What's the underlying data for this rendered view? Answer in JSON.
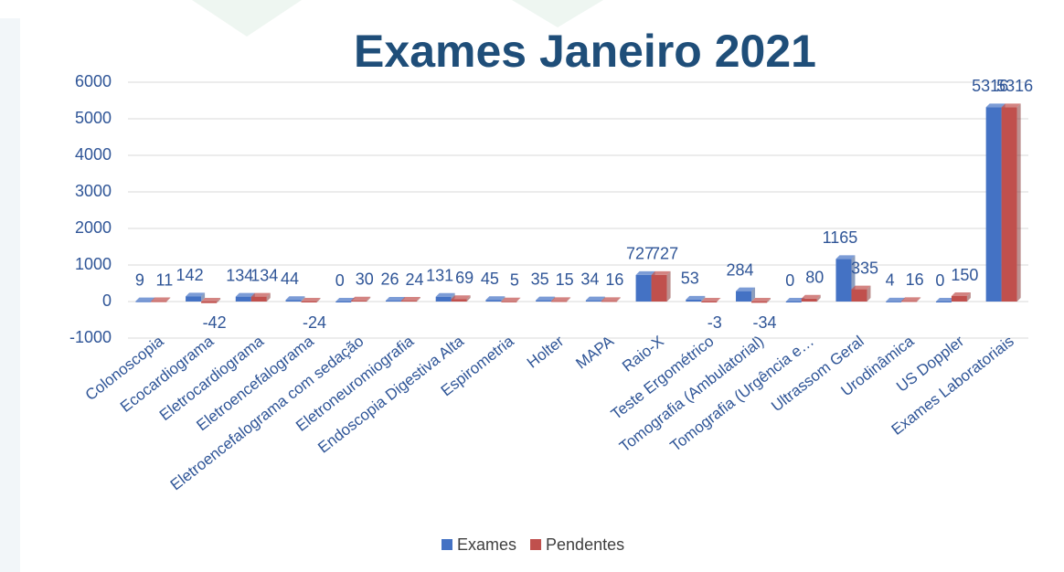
{
  "chart_data": {
    "type": "bar",
    "title": "Exames Janeiro 2021",
    "categories": [
      "Colonoscopia",
      "Ecocardiograma",
      "Eletrocardiograma",
      "Eletroencefalograma",
      "Eletroencefalograma com sedação",
      "Eletroneuromiografia",
      "Endoscopia Digestiva Alta",
      "Espirometria",
      "Holter",
      "MAPA",
      "Raio-X",
      "Teste Ergométrico",
      "Tomografia (Ambulatorial)",
      "Tomografia (Urgência e…",
      "Ultrassom Geral",
      "Urodinâmica",
      "US Doppler",
      "Exames Laboratoriais"
    ],
    "series": [
      {
        "name": "Exames",
        "color": "#4472c4",
        "values": [
          9,
          142,
          134,
          44,
          0,
          26,
          131,
          45,
          35,
          34,
          727,
          53,
          284,
          0,
          1165,
          4,
          0,
          5316
        ]
      },
      {
        "name": "Pendentes",
        "color": "#c0504d",
        "values": [
          11,
          -42,
          134,
          -24,
          30,
          24,
          69,
          5,
          15,
          16,
          727,
          -3,
          -34,
          80,
          335,
          16,
          150,
          5316
        ]
      }
    ],
    "ylim": [
      -1000,
      6000
    ],
    "yticks": [
      -1000,
      0,
      1000,
      2000,
      3000,
      4000,
      5000,
      6000
    ],
    "grid": true,
    "legend": "bottom"
  }
}
